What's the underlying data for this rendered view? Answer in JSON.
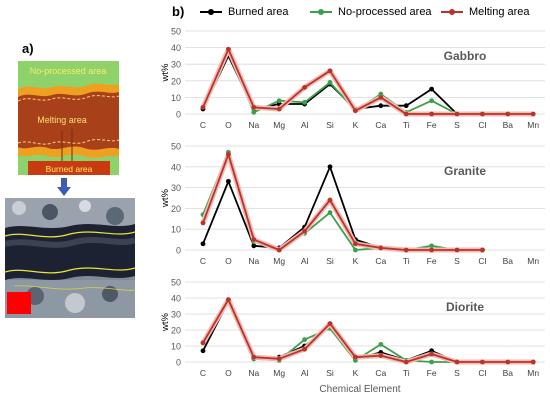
{
  "panel_a_label": "a)",
  "panel_b_label": "b)",
  "schematic": {
    "top_label": "No-processed area",
    "middle_label": "Melting area",
    "bottom_label": "Burned area",
    "colors": {
      "no_processed": "#8fd16a",
      "melting": "#a8401a",
      "burned": "#c83a10",
      "melt_border": "#f0a020"
    }
  },
  "colors": {
    "burned": "#000000",
    "no_processed": "#3aa14a",
    "melting": "#b8352a",
    "melting_halo": "#f3b9b4",
    "arrow": "#3c5bb8",
    "photo_marker": "#ff0000"
  },
  "legend": [
    {
      "key": "burned",
      "label": "Burned area"
    },
    {
      "key": "no_processed",
      "label": "No-processed area"
    },
    {
      "key": "melting",
      "label": "Melting area"
    }
  ],
  "xlabel": "Chemical Element",
  "chart_data": [
    {
      "type": "line",
      "title": "Gabbro",
      "ylabel": "wt%",
      "ylim": [
        0,
        50
      ],
      "yticks": [
        0,
        10,
        20,
        30,
        40,
        50
      ],
      "grid": true,
      "categories": [
        "C",
        "O",
        "Na",
        "Mg",
        "Al",
        "Si",
        "K",
        "Ca",
        "Ti",
        "Fe",
        "S",
        "Cl",
        "Ba",
        "Mn"
      ],
      "series": [
        {
          "key": "burned",
          "name": "Burned area",
          "values": [
            3,
            35,
            3,
            6,
            6,
            18,
            3,
            5,
            5,
            15,
            0,
            null,
            null,
            null
          ]
        },
        {
          "key": "no_processed",
          "name": "No-processed area",
          "values": [
            4,
            38,
            1,
            8,
            7,
            19,
            2,
            12,
            1,
            8,
            0,
            null,
            null,
            null
          ]
        },
        {
          "key": "melting",
          "name": "Melting area",
          "values": [
            4,
            39,
            4,
            3,
            16,
            26,
            2,
            10,
            0,
            0,
            0,
            0,
            0,
            0
          ]
        }
      ]
    },
    {
      "type": "line",
      "title": "Granite",
      "ylabel": "wt%",
      "ylim": [
        0,
        50
      ],
      "yticks": [
        0,
        10,
        20,
        30,
        40,
        50
      ],
      "grid": true,
      "categories": [
        "C",
        "O",
        "Na",
        "Mg",
        "Al",
        "Si",
        "K",
        "Ca",
        "Ti",
        "Fe",
        "S",
        "Cl",
        "Ba",
        "Mn"
      ],
      "series": [
        {
          "key": "burned",
          "name": "Burned area",
          "values": [
            3,
            33,
            2,
            1,
            11,
            40,
            5,
            1,
            0,
            0,
            0,
            0,
            null,
            null
          ]
        },
        {
          "key": "no_processed",
          "name": "No-processed area",
          "values": [
            17,
            47,
            4,
            0,
            8,
            18,
            0,
            1,
            0,
            2,
            0,
            null,
            null,
            null
          ]
        },
        {
          "key": "melting",
          "name": "Melting area",
          "values": [
            13,
            46,
            5,
            0,
            9,
            24,
            3,
            1,
            0,
            0,
            0,
            0,
            null,
            null
          ]
        }
      ]
    },
    {
      "type": "line",
      "title": "Diorite",
      "ylabel": "wt%",
      "ylim": [
        0,
        50
      ],
      "yticks": [
        0,
        10,
        20,
        30,
        40,
        50
      ],
      "grid": true,
      "categories": [
        "C",
        "O",
        "Na",
        "Mg",
        "Al",
        "Si",
        "K",
        "Ca",
        "Ti",
        "Fe",
        "S",
        "Cl",
        "Ba",
        "Mn"
      ],
      "series": [
        {
          "key": "burned",
          "name": "Burned area",
          "values": [
            7,
            38,
            2,
            3,
            10,
            22,
            2,
            6,
            1,
            7,
            0,
            0,
            0,
            0
          ]
        },
        {
          "key": "no_processed",
          "name": "No-processed area",
          "values": [
            12,
            37,
            2,
            1,
            14,
            21,
            1,
            11,
            1,
            0,
            0,
            null,
            null,
            null
          ]
        },
        {
          "key": "melting",
          "name": "Melting area",
          "values": [
            12,
            39,
            3,
            2,
            8,
            24,
            3,
            4,
            0,
            5,
            0,
            0,
            0,
            0
          ]
        }
      ]
    }
  ]
}
